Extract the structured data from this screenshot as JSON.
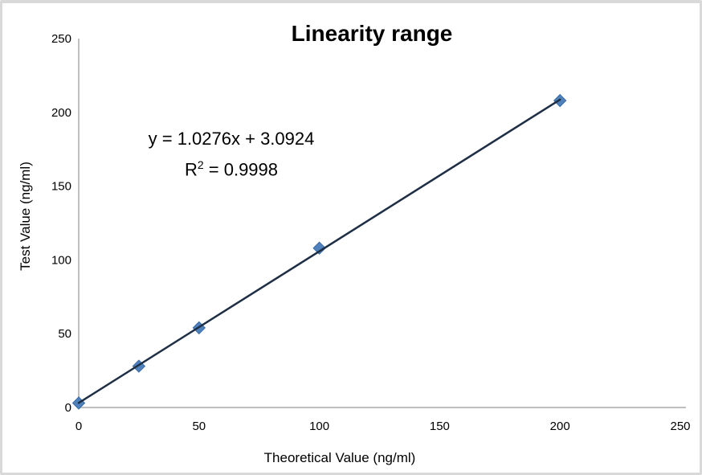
{
  "window": {
    "background_color": "#ffffff",
    "border_color": "#d9d9d9"
  },
  "chart_data": {
    "type": "scatter",
    "title": "Linearity range",
    "xlabel": "Theoretical Value（ng/ml）",
    "ylabel": "Test Value（ng/ml）",
    "xlim": [
      0,
      250
    ],
    "ylim": [
      0,
      250
    ],
    "x_ticks": [
      0,
      50,
      100,
      150,
      200,
      250
    ],
    "y_ticks": [
      0,
      50,
      100,
      150,
      200,
      250
    ],
    "grid": false,
    "legend": "none",
    "points": [
      {
        "x": 0,
        "y": 3
      },
      {
        "x": 25,
        "y": 28
      },
      {
        "x": 50,
        "y": 54
      },
      {
        "x": 100,
        "y": 108
      },
      {
        "x": 200,
        "y": 208
      }
    ],
    "trendline": {
      "slope": 1.0276,
      "intercept": 3.0924,
      "x_range": [
        0,
        200
      ],
      "color": "#1e2e44"
    },
    "equation_label": {
      "line1": "y = 1.0276x + 3.0924",
      "r2_base": "R",
      "r2_sup": "2",
      "r2_rest": " = 0.9998"
    },
    "marker_color": "#4f81bd",
    "marker_edge_color": "#3a6ba5",
    "axis_color": "#bfbfbf",
    "text_color": "#000000"
  }
}
